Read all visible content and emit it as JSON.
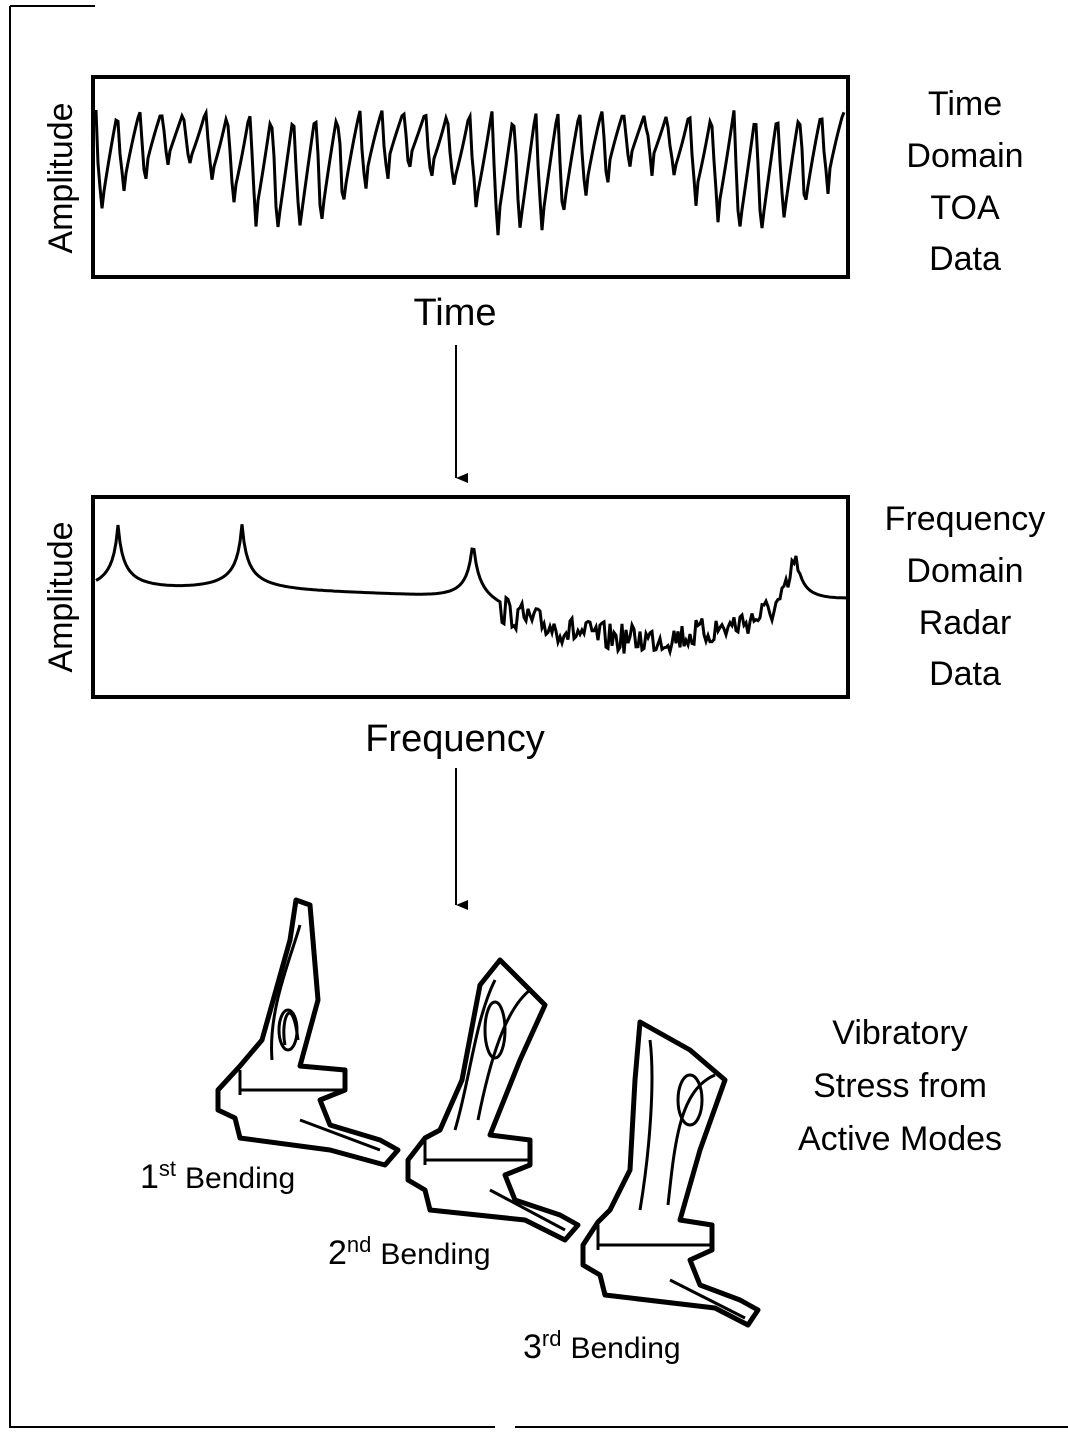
{
  "panels": [
    {
      "y_label": "Amplitude",
      "x_label": "Time",
      "caption": [
        "Time",
        "Domain",
        "TOA",
        "Data"
      ]
    },
    {
      "y_label": "Amplitude",
      "x_label": "Frequency",
      "caption": [
        "Frequency",
        "Domain",
        "Radar",
        "Data"
      ]
    }
  ],
  "modes": {
    "caption": [
      "Vibratory",
      "Stress from",
      "Active Modes"
    ],
    "items": [
      {
        "number": "1",
        "suffix": "st",
        "word": "Bending"
      },
      {
        "number": "2",
        "suffix": "nd",
        "word": "Bending"
      },
      {
        "number": "3",
        "suffix": "rd",
        "word": "Bending"
      }
    ]
  }
}
